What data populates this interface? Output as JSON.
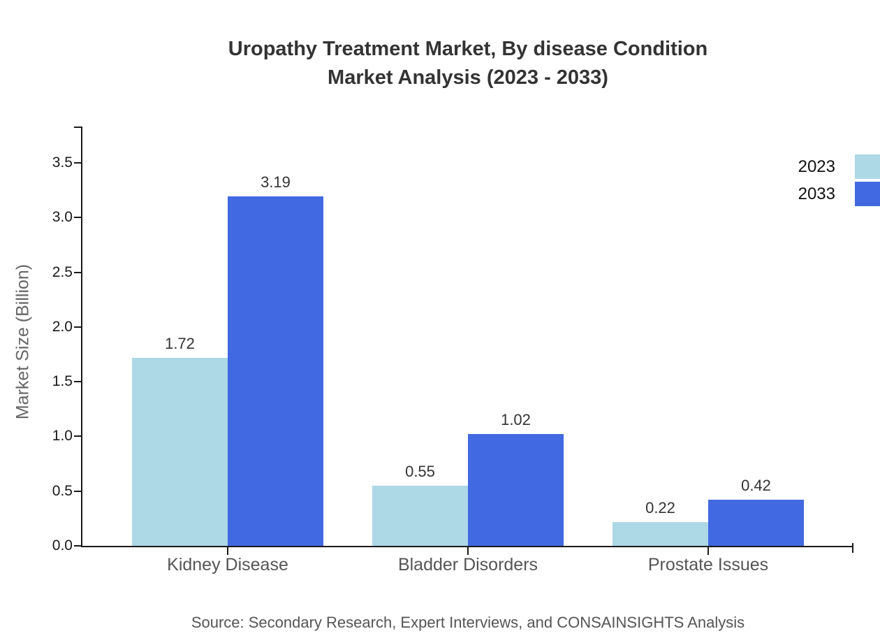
{
  "title": {
    "line1": "Uropathy Treatment Market, By disease Condition",
    "line2": "Market Analysis (2023 - 2033)"
  },
  "source": "Source: Secondary Research, Expert Interviews, and CONSAINSIGHTS Analysis",
  "chart_data": {
    "type": "bar",
    "categories": [
      "Kidney Disease",
      "Bladder Disorders",
      "Prostate Issues"
    ],
    "series": [
      {
        "name": "2023",
        "color": "#ADD8E6",
        "values": [
          1.72,
          0.55,
          0.22
        ]
      },
      {
        "name": "2033",
        "color": "#4169E1",
        "values": [
          3.19,
          1.02,
          0.42
        ]
      }
    ],
    "title": "Uropathy Treatment Market, By disease Condition Market Analysis (2023 - 2033)",
    "xlabel": "",
    "ylabel": "Market Size (Billion)",
    "ylim": [
      0,
      3.85
    ],
    "yticks": [
      0.0,
      0.5,
      1.0,
      1.5,
      2.0,
      2.5,
      3.0,
      3.5
    ],
    "grid": false,
    "legend_position": "top-right",
    "value_labels": true,
    "axis_color": "#1a1a1a",
    "value_label_color": "#333333",
    "category_label_color": "#555555"
  }
}
